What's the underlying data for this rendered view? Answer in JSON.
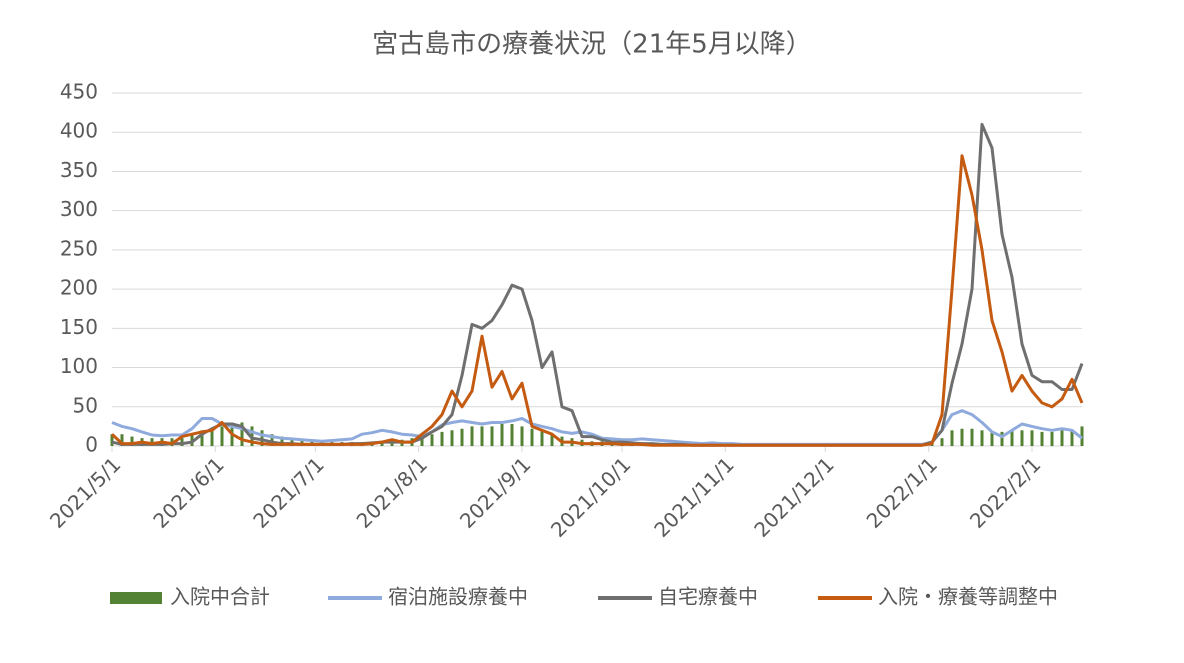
{
  "chart_data": {
    "type": "line",
    "title": "宮古島市の療養状況（21年5月以降）",
    "x": [
      "2021/5/1",
      "2021/5/4",
      "2021/5/7",
      "2021/5/10",
      "2021/5/13",
      "2021/5/16",
      "2021/5/19",
      "2021/5/22",
      "2021/5/25",
      "2021/5/28",
      "2021/5/31",
      "2021/6/3",
      "2021/6/6",
      "2021/6/9",
      "2021/6/12",
      "2021/6/15",
      "2021/6/18",
      "2021/6/21",
      "2021/6/24",
      "2021/6/27",
      "2021/6/30",
      "2021/7/3",
      "2021/7/6",
      "2021/7/9",
      "2021/7/12",
      "2021/7/15",
      "2021/7/18",
      "2021/7/21",
      "2021/7/24",
      "2021/7/27",
      "2021/7/30",
      "2021/8/2",
      "2021/8/5",
      "2021/8/8",
      "2021/8/11",
      "2021/8/14",
      "2021/8/17",
      "2021/8/20",
      "2021/8/23",
      "2021/8/26",
      "2021/8/29",
      "2021/9/1",
      "2021/9/4",
      "2021/9/7",
      "2021/9/10",
      "2021/9/13",
      "2021/9/16",
      "2021/9/19",
      "2021/9/22",
      "2021/9/25",
      "2021/9/28",
      "2021/10/1",
      "2021/10/4",
      "2021/10/7",
      "2021/10/10",
      "2021/10/13",
      "2021/10/16",
      "2021/10/19",
      "2021/10/22",
      "2021/10/25",
      "2021/10/28",
      "2021/10/31",
      "2021/11/3",
      "2021/11/6",
      "2021/11/9",
      "2021/11/12",
      "2021/11/15",
      "2021/11/18",
      "2021/11/21",
      "2021/11/24",
      "2021/11/27",
      "2021/11/30",
      "2021/12/3",
      "2021/12/6",
      "2021/12/9",
      "2021/12/12",
      "2021/12/15",
      "2021/12/18",
      "2021/12/21",
      "2021/12/24",
      "2021/12/27",
      "2021/12/30",
      "2022/1/2",
      "2022/1/5",
      "2022/1/8",
      "2022/1/11",
      "2022/1/14",
      "2022/1/17",
      "2022/1/20",
      "2022/1/23",
      "2022/1/26",
      "2022/1/29",
      "2022/2/1",
      "2022/2/4",
      "2022/2/7",
      "2022/2/10",
      "2022/2/13",
      "2022/2/16"
    ],
    "xlim": [
      "2021/5/1",
      "2022/2/16"
    ],
    "xticks": [
      "2021/5/1",
      "2021/6/1",
      "2021/7/1",
      "2021/8/1",
      "2021/9/1",
      "2021/10/1",
      "2021/11/1",
      "2021/12/1",
      "2022/1/1",
      "2022/2/1"
    ],
    "ylim": [
      0,
      450
    ],
    "yticks": [
      0,
      50,
      100,
      150,
      200,
      250,
      300,
      350,
      400,
      450
    ],
    "grid": true,
    "legend": "bottom",
    "series": [
      {
        "name": "入院中合計",
        "type": "bar",
        "color": "#548235",
        "values": [
          15,
          15,
          12,
          10,
          10,
          10,
          10,
          10,
          15,
          20,
          22,
          25,
          30,
          30,
          25,
          20,
          15,
          12,
          10,
          8,
          8,
          6,
          5,
          5,
          5,
          5,
          5,
          6,
          8,
          8,
          10,
          12,
          15,
          18,
          20,
          22,
          25,
          25,
          25,
          28,
          28,
          25,
          22,
          20,
          15,
          12,
          10,
          8,
          6,
          6,
          5,
          5,
          5,
          4,
          4,
          3,
          3,
          3,
          3,
          2,
          2,
          2,
          2,
          2,
          2,
          1,
          1,
          1,
          1,
          1,
          1,
          1,
          1,
          1,
          1,
          1,
          1,
          1,
          1,
          1,
          1,
          1,
          3,
          10,
          20,
          22,
          22,
          20,
          18,
          18,
          20,
          20,
          20,
          18,
          18,
          20,
          20,
          25
        ]
      },
      {
        "name": "宿泊施設療養中",
        "type": "line",
        "color": "#8faadc",
        "values": [
          30,
          25,
          22,
          18,
          14,
          13,
          14,
          14,
          22,
          35,
          35,
          28,
          25,
          22,
          18,
          14,
          12,
          10,
          9,
          8,
          7,
          6,
          7,
          8,
          9,
          15,
          17,
          20,
          18,
          15,
          14,
          12,
          18,
          27,
          30,
          32,
          30,
          28,
          30,
          30,
          32,
          35,
          28,
          25,
          22,
          18,
          16,
          18,
          15,
          10,
          9,
          8,
          8,
          9,
          8,
          7,
          6,
          5,
          4,
          3,
          4,
          3,
          3,
          2,
          2,
          2,
          2,
          2,
          2,
          2,
          2,
          2,
          2,
          2,
          2,
          2,
          2,
          2,
          2,
          2,
          2,
          2,
          5,
          20,
          40,
          45,
          40,
          30,
          18,
          12,
          20,
          28,
          25,
          22,
          20,
          22,
          20,
          10
        ]
      },
      {
        "name": "自宅療養中",
        "type": "line",
        "color": "#6f6f6f",
        "values": [
          5,
          2,
          2,
          2,
          2,
          2,
          3,
          3,
          5,
          15,
          22,
          28,
          28,
          25,
          10,
          8,
          5,
          3,
          3,
          2,
          2,
          2,
          2,
          2,
          3,
          3,
          4,
          5,
          5,
          5,
          5,
          10,
          18,
          25,
          40,
          90,
          155,
          150,
          160,
          180,
          205,
          200,
          160,
          100,
          120,
          50,
          45,
          12,
          12,
          8,
          5,
          5,
          4,
          3,
          3,
          2,
          2,
          2,
          1,
          1,
          1,
          1,
          1,
          1,
          1,
          1,
          1,
          1,
          1,
          1,
          1,
          1,
          1,
          1,
          1,
          1,
          1,
          1,
          1,
          1,
          1,
          1,
          5,
          20,
          80,
          130,
          200,
          410,
          380,
          270,
          215,
          130,
          90,
          82,
          82,
          72,
          72,
          105
        ]
      },
      {
        "name": "入院・療養等調整中",
        "type": "line",
        "color": "#c55a11",
        "values": [
          15,
          3,
          3,
          5,
          3,
          5,
          3,
          12,
          15,
          18,
          20,
          30,
          15,
          8,
          5,
          3,
          2,
          2,
          2,
          2,
          2,
          2,
          2,
          2,
          2,
          2,
          3,
          5,
          8,
          5,
          5,
          15,
          25,
          40,
          70,
          50,
          70,
          140,
          75,
          95,
          60,
          80,
          25,
          20,
          15,
          5,
          5,
          3,
          3,
          3,
          3,
          2,
          2,
          2,
          1,
          1,
          1,
          1,
          1,
          1,
          1,
          1,
          1,
          1,
          1,
          1,
          1,
          1,
          1,
          1,
          1,
          1,
          1,
          1,
          1,
          1,
          1,
          1,
          1,
          1,
          1,
          1,
          3,
          40,
          200,
          370,
          320,
          250,
          160,
          120,
          70,
          90,
          70,
          55,
          50,
          60,
          85,
          55
        ]
      }
    ]
  }
}
